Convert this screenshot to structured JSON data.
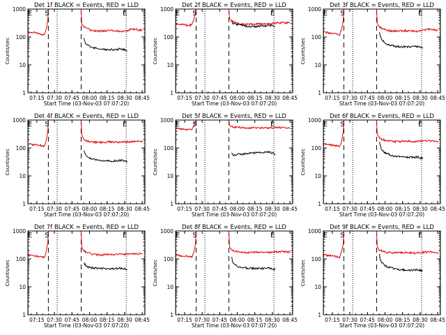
{
  "figure": {
    "colors": {
      "events": "#000000",
      "lld": "#e00000",
      "axes": "#000000",
      "background": "#ffffff"
    },
    "shared": {
      "xlabel": "Start Time (03-Nov-03 07:07:20)",
      "ylabel": "Counts/sec",
      "x_tick_labels": [
        "07:15",
        "07:30",
        "07:45",
        "08:00",
        "08:15",
        "08:30",
        "08:45"
      ],
      "y_tick_labels": [
        "1",
        "10",
        "100",
        "1000"
      ],
      "flag_labels": {
        "start": "S",
        "end": "E"
      }
    }
  },
  "chart_data": [
    {
      "type": "line",
      "title": "Det 1f BLACK = Events, RED = LLD",
      "xlabel": "Start Time (03-Nov-03 07:07:20)",
      "ylabel": "Counts/sec",
      "x_unit": "minutes since 07:07:20",
      "xlim": [
        0,
        100
      ],
      "ylim": [
        1,
        1000
      ],
      "y_scale": "log",
      "vlines": {
        "dashed": [
          17.5,
          45.5
        ],
        "dotted": [
          0.3,
          25,
          84,
          99.5
        ]
      },
      "flags": [
        {
          "label": "S",
          "x": 17.5
        },
        {
          "label": "E",
          "x": 84
        }
      ],
      "series": [
        {
          "color": "red",
          "x": [
            0,
            6,
            12,
            14,
            15,
            16,
            17,
            17.5,
            18,
            20,
            30,
            40,
            44,
            45.5,
            46,
            47,
            48,
            50,
            55,
            60,
            70,
            80,
            90,
            98
          ],
          "y": [
            150,
            140,
            125,
            120,
            160,
            220,
            400,
            1000,
            1000,
            1000,
            1000,
            1000,
            1000,
            1000,
            300,
            260,
            230,
            200,
            170,
            160,
            170,
            160,
            190,
            175
          ]
        },
        {
          "color": "black",
          "x": [
            48,
            48.5,
            50,
            52,
            55,
            60,
            65,
            70,
            75,
            80,
            85
          ],
          "y": [
            90,
            70,
            55,
            48,
            42,
            38,
            36,
            35,
            36,
            38,
            32
          ]
        }
      ]
    },
    {
      "type": "line",
      "title": "Det 2f BLACK = Events, RED = LLD",
      "xlabel": "Start Time (03-Nov-03 07:07:20)",
      "ylabel": "Counts/sec",
      "x_unit": "minutes since 07:07:20",
      "xlim": [
        0,
        100
      ],
      "ylim": [
        1,
        1000
      ],
      "y_scale": "log",
      "vlines": {
        "dashed": [
          17.5,
          45.5
        ],
        "dotted": [
          0.3,
          25,
          84,
          99.5
        ]
      },
      "flags": [
        {
          "label": "S",
          "x": 17.5
        },
        {
          "label": "E",
          "x": 84
        }
      ],
      "series": [
        {
          "color": "red",
          "x": [
            0,
            6,
            12,
            14,
            15,
            16,
            17,
            17.5,
            18,
            20,
            30,
            40,
            44,
            45.5,
            46,
            47,
            48,
            50,
            55,
            60,
            70,
            80,
            90,
            98
          ],
          "y": [
            300,
            280,
            260,
            270,
            350,
            500,
            800,
            1000,
            1000,
            1000,
            1000,
            1000,
            1000,
            1000,
            500,
            420,
            380,
            340,
            300,
            280,
            290,
            300,
            330,
            320
          ]
        },
        {
          "color": "black",
          "x": [
            48,
            48.5,
            50,
            55,
            60,
            65,
            70,
            75,
            80,
            85
          ],
          "y": [
            380,
            320,
            300,
            270,
            250,
            240,
            240,
            250,
            260,
            240
          ]
        }
      ]
    },
    {
      "type": "line",
      "title": "Det 3f BLACK = Events, RED = LLD",
      "xlabel": "Start Time (03-Nov-03 07:07:20)",
      "ylabel": "Counts/sec",
      "x_unit": "minutes since 07:07:20",
      "xlim": [
        0,
        100
      ],
      "ylim": [
        1,
        1000
      ],
      "y_scale": "log",
      "vlines": {
        "dashed": [
          17.5,
          45.5
        ],
        "dotted": [
          0.3,
          25,
          84,
          99.5
        ]
      },
      "flags": [
        {
          "label": "S",
          "x": 17.5
        },
        {
          "label": "E",
          "x": 84
        }
      ],
      "series": [
        {
          "color": "red",
          "x": [
            0,
            6,
            12,
            14,
            15,
            16,
            17,
            17.5,
            18,
            20,
            30,
            40,
            44,
            45.5,
            46,
            47,
            48,
            50,
            55,
            60,
            70,
            80,
            90,
            98
          ],
          "y": [
            150,
            140,
            125,
            120,
            160,
            220,
            400,
            1000,
            1000,
            1000,
            1000,
            1000,
            1000,
            1000,
            300,
            260,
            230,
            200,
            170,
            160,
            170,
            160,
            190,
            175
          ]
        },
        {
          "color": "black",
          "x": [
            48,
            48.5,
            50,
            52,
            55,
            60,
            65,
            70,
            75,
            80,
            85
          ],
          "y": [
            150,
            110,
            80,
            65,
            55,
            48,
            45,
            44,
            45,
            46,
            42
          ]
        }
      ]
    },
    {
      "type": "line",
      "title": "Det 4f BLACK = Events, RED = LLD",
      "xlabel": "Start Time (03-Nov-03 07:07:20)",
      "ylabel": "Counts/sec",
      "x_unit": "minutes since 07:07:20",
      "xlim": [
        0,
        100
      ],
      "ylim": [
        1,
        1000
      ],
      "y_scale": "log",
      "vlines": {
        "dashed": [
          17.5,
          45.5
        ],
        "dotted": [
          0.3,
          25,
          84,
          99.5
        ]
      },
      "flags": [
        {
          "label": "S",
          "x": 17.5
        },
        {
          "label": "E",
          "x": 84
        }
      ],
      "series": [
        {
          "color": "red",
          "x": [
            0,
            6,
            12,
            14,
            15,
            16,
            17,
            17.5,
            18,
            20,
            30,
            40,
            44,
            45.5,
            46,
            47,
            48,
            50,
            55,
            60,
            70,
            80,
            90,
            98
          ],
          "y": [
            140,
            130,
            120,
            115,
            150,
            210,
            380,
            1000,
            1000,
            1000,
            1000,
            1000,
            1000,
            1000,
            280,
            240,
            210,
            180,
            165,
            160,
            165,
            160,
            175,
            170
          ]
        },
        {
          "color": "black",
          "x": [
            48,
            48.5,
            50,
            52,
            55,
            60,
            65,
            70,
            75,
            80,
            85
          ],
          "y": [
            85,
            65,
            50,
            45,
            40,
            36,
            34,
            34,
            35,
            36,
            32
          ]
        }
      ]
    },
    {
      "type": "line",
      "title": "Det 5f BLACK = Events, RED = LLD",
      "xlabel": "Start Time (03-Nov-03 07:07:20)",
      "ylabel": "Counts/sec",
      "x_unit": "minutes since 07:07:20",
      "xlim": [
        0,
        100
      ],
      "ylim": [
        1,
        1000
      ],
      "y_scale": "log",
      "vlines": {
        "dashed": [
          17.5,
          45.5
        ],
        "dotted": [
          0.3,
          25,
          84,
          99.5
        ]
      },
      "flags": [
        {
          "label": "S",
          "x": 17.5
        },
        {
          "label": "E",
          "x": 84
        }
      ],
      "series": [
        {
          "color": "red",
          "x": [
            0,
            6,
            12,
            14,
            15,
            16,
            17,
            17.5,
            18,
            20,
            30,
            40,
            44,
            45.5,
            46,
            47,
            48,
            50,
            55,
            60,
            70,
            80,
            90,
            98
          ],
          "y": [
            500,
            480,
            450,
            460,
            550,
            700,
            900,
            1000,
            1000,
            1000,
            1000,
            1000,
            1000,
            1000,
            700,
            620,
            580,
            560,
            540,
            520,
            520,
            530,
            540,
            500
          ]
        },
        {
          "color": "black",
          "x": [
            48,
            48.5,
            50,
            55,
            60,
            65,
            70,
            75,
            80,
            85
          ],
          "y": [
            70,
            60,
            55,
            60,
            62,
            65,
            68,
            70,
            72,
            60
          ]
        }
      ]
    },
    {
      "type": "line",
      "title": "Det 6f BLACK = Events, RED = LLD",
      "xlabel": "Start Time (03-Nov-03 07:07:20)",
      "ylabel": "Counts/sec",
      "x_unit": "minutes since 07:07:20",
      "xlim": [
        0,
        100
      ],
      "ylim": [
        1,
        1000
      ],
      "y_scale": "log",
      "vlines": {
        "dashed": [
          17.5,
          45.5
        ],
        "dotted": [
          0.3,
          25,
          84,
          99.5
        ]
      },
      "flags": [
        {
          "label": "S",
          "x": 17.5
        },
        {
          "label": "E",
          "x": 84
        }
      ],
      "series": [
        {
          "color": "red",
          "x": [
            0,
            6,
            12,
            14,
            15,
            16,
            17,
            17.5,
            18,
            20,
            30,
            40,
            44,
            45.5,
            46,
            47,
            48,
            50,
            55,
            60,
            70,
            80,
            90,
            98
          ],
          "y": [
            140,
            130,
            120,
            115,
            150,
            210,
            380,
            1000,
            1000,
            1000,
            1000,
            1000,
            1000,
            1000,
            300,
            260,
            230,
            200,
            180,
            170,
            175,
            170,
            180,
            170
          ]
        },
        {
          "color": "black",
          "x": [
            48,
            48.5,
            50,
            52,
            55,
            60,
            65,
            70,
            75,
            80,
            85
          ],
          "y": [
            160,
            120,
            85,
            70,
            60,
            52,
            48,
            46,
            46,
            47,
            42
          ]
        }
      ]
    },
    {
      "type": "line",
      "title": "Det 7f BLACK = Events, RED = LLD",
      "xlabel": "Start Time (03-Nov-03 07:07:20)",
      "ylabel": "Counts/sec",
      "x_unit": "minutes since 07:07:20",
      "xlim": [
        0,
        100
      ],
      "ylim": [
        1,
        1000
      ],
      "y_scale": "log",
      "vlines": {
        "dashed": [
          17.5,
          45.5
        ],
        "dotted": [
          0.3,
          25,
          84,
          99.5
        ]
      },
      "flags": [
        {
          "label": "S",
          "x": 17.5
        },
        {
          "label": "E",
          "x": 84
        }
      ],
      "series": [
        {
          "color": "red",
          "x": [
            0,
            6,
            12,
            14,
            15,
            16,
            17,
            17.5,
            18,
            20,
            30,
            40,
            44,
            45.5,
            46,
            47,
            48,
            50,
            55,
            60,
            70,
            80,
            90,
            98
          ],
          "y": [
            140,
            130,
            120,
            115,
            150,
            210,
            380,
            1000,
            1000,
            1000,
            1000,
            1000,
            1000,
            1000,
            260,
            220,
            190,
            170,
            150,
            140,
            145,
            145,
            155,
            150
          ]
        },
        {
          "color": "black",
          "x": [
            48,
            48.5,
            50,
            52,
            55,
            60,
            65,
            70,
            75,
            80,
            85
          ],
          "y": [
            75,
            65,
            55,
            50,
            48,
            46,
            45,
            44,
            45,
            46,
            42
          ]
        }
      ]
    },
    {
      "type": "line",
      "title": "Det 8f BLACK = Events, RED = LLD",
      "xlabel": "Start Time (03-Nov-03 07:07:20)",
      "ylabel": "Counts/sec",
      "x_unit": "minutes since 07:07:20",
      "xlim": [
        0,
        100
      ],
      "ylim": [
        1,
        1000
      ],
      "y_scale": "log",
      "vlines": {
        "dashed": [
          17.5,
          45.5
        ],
        "dotted": [
          0.3,
          25,
          84,
          99.5
        ]
      },
      "flags": [
        {
          "label": "S",
          "x": 17.5
        },
        {
          "label": "E",
          "x": 84
        }
      ],
      "series": [
        {
          "color": "red",
          "x": [
            0,
            6,
            12,
            14,
            15,
            16,
            17,
            17.5,
            18,
            20,
            30,
            40,
            44,
            45.5,
            46,
            47,
            48,
            50,
            55,
            60,
            70,
            80,
            90,
            98
          ],
          "y": [
            140,
            130,
            120,
            115,
            150,
            210,
            380,
            1000,
            1000,
            1000,
            1000,
            1000,
            1000,
            1000,
            280,
            240,
            210,
            190,
            175,
            170,
            175,
            170,
            185,
            175
          ]
        },
        {
          "color": "black",
          "x": [
            48,
            48.5,
            50,
            52,
            55,
            60,
            65,
            70,
            75,
            80,
            85
          ],
          "y": [
            110,
            80,
            65,
            55,
            50,
            48,
            46,
            45,
            46,
            47,
            42
          ]
        }
      ]
    },
    {
      "type": "line",
      "title": "Det 9f BLACK = Events, RED = LLD",
      "xlabel": "Start Time (03-Nov-03 07:07:20)",
      "ylabel": "Counts/sec",
      "x_unit": "minutes since 07:07:20",
      "xlim": [
        0,
        100
      ],
      "ylim": [
        1,
        1000
      ],
      "y_scale": "log",
      "vlines": {
        "dashed": [
          17.5,
          45.5
        ],
        "dotted": [
          0.3,
          25,
          84,
          99.5
        ]
      },
      "flags": [
        {
          "label": "S",
          "x": 17.5
        },
        {
          "label": "E",
          "x": 84
        }
      ],
      "series": [
        {
          "color": "red",
          "x": [
            0,
            6,
            12,
            14,
            15,
            16,
            17,
            17.5,
            18,
            20,
            30,
            40,
            44,
            45.5,
            46,
            47,
            48,
            50,
            55,
            60,
            70,
            80,
            90,
            98
          ],
          "y": [
            140,
            130,
            120,
            115,
            150,
            210,
            380,
            1000,
            1000,
            1000,
            1000,
            1000,
            1000,
            1000,
            280,
            240,
            210,
            190,
            170,
            165,
            170,
            165,
            180,
            170
          ]
        },
        {
          "color": "black",
          "x": [
            48,
            48.5,
            50,
            52,
            55,
            60,
            65,
            70,
            75,
            80,
            85
          ],
          "y": [
            140,
            100,
            75,
            60,
            52,
            46,
            42,
            40,
            40,
            41,
            38
          ]
        }
      ]
    }
  ]
}
